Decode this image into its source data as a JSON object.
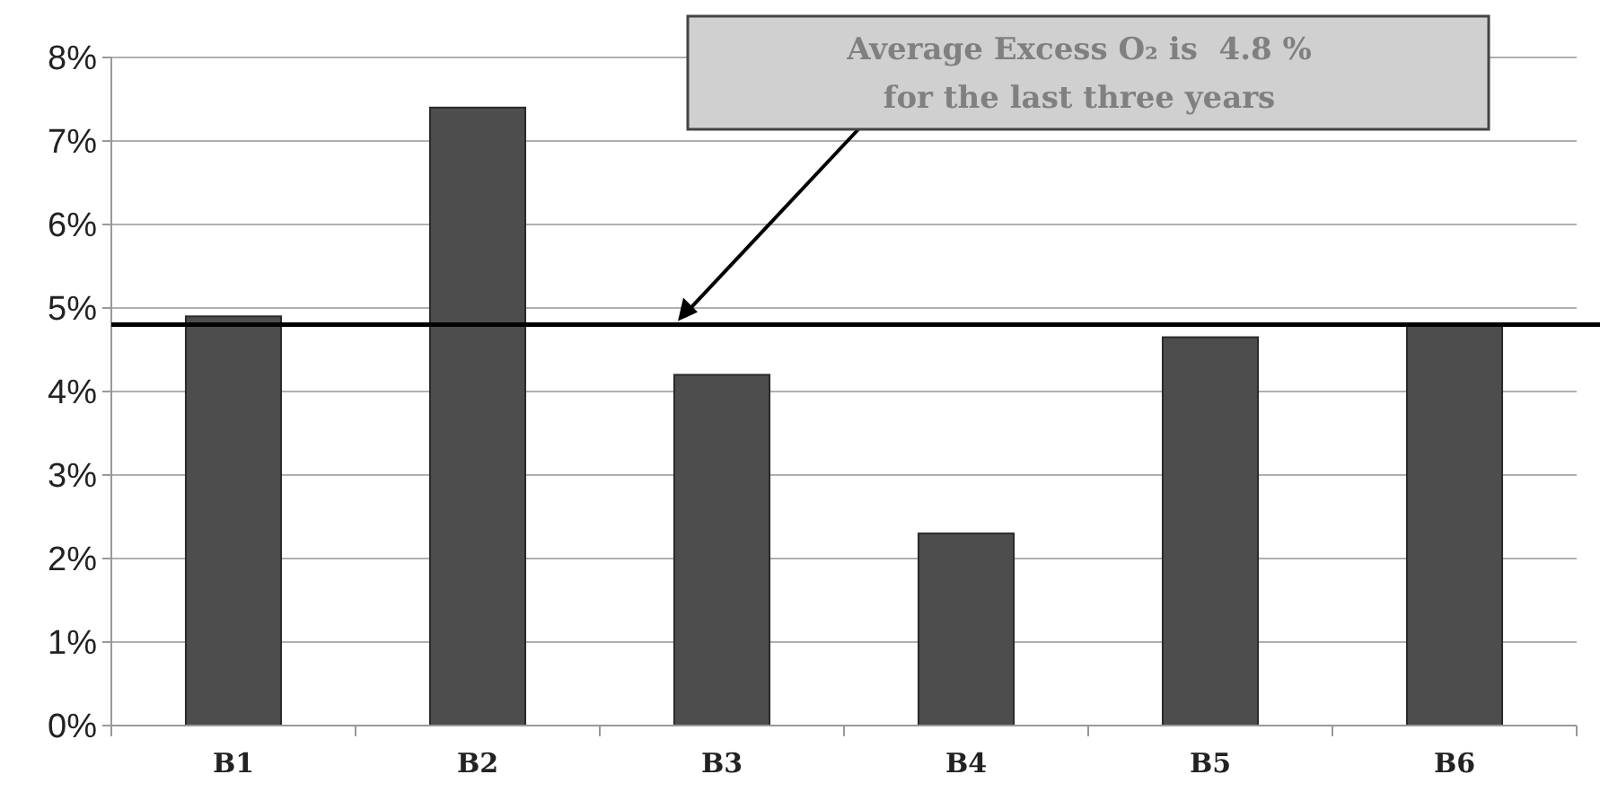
{
  "chart_data": {
    "type": "bar",
    "categories": [
      "B1",
      "B2",
      "B3",
      "B4",
      "B5",
      "B6"
    ],
    "values": [
      4.9,
      7.4,
      4.2,
      2.3,
      4.65,
      4.8
    ],
    "color": "#4d4d4d",
    "ylim": [
      0,
      8
    ],
    "yticks": [
      {
        "value": 0,
        "label": "0%"
      },
      {
        "value": 1,
        "label": "1%"
      },
      {
        "value": 2,
        "label": "2%"
      },
      {
        "value": 3,
        "label": "3%"
      },
      {
        "value": 4,
        "label": "4%"
      },
      {
        "value": 5,
        "label": "5%"
      },
      {
        "value": 6,
        "label": "6%"
      },
      {
        "value": 7,
        "label": "7%"
      },
      {
        "value": 8,
        "label": "8%"
      }
    ],
    "grid": "y",
    "ref_lines": [
      {
        "axis": "y",
        "value": 4.8,
        "label": "Average Excess O₂ is  4.8 %\nfor the last three years",
        "color": "#000000"
      }
    ]
  }
}
